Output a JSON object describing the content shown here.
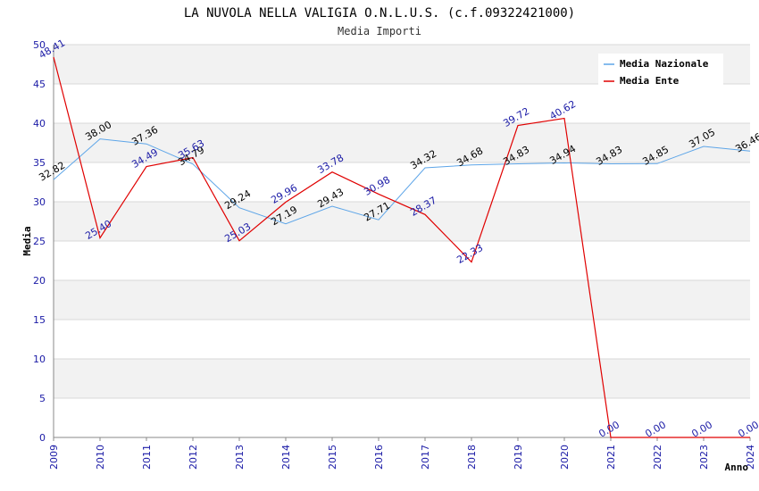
{
  "chart_data": {
    "type": "line",
    "title": "LA NUVOLA NELLA VALIGIA O.N.L.U.S. (c.f.09322421000)",
    "subtitle": "Media Importi",
    "xlabel": "Anno",
    "ylabel": "Media",
    "ylim": [
      0,
      50
    ],
    "yticks": [
      "0",
      "5",
      "10",
      "15",
      "20",
      "25",
      "30",
      "35",
      "40",
      "45",
      "50"
    ],
    "categories": [
      "2009",
      "2010",
      "2011",
      "2012",
      "2013",
      "2014",
      "2015",
      "2016",
      "2017",
      "2018",
      "2019",
      "2020",
      "2021",
      "2022",
      "2023",
      "2024"
    ],
    "legend_position": "top-right",
    "series": [
      {
        "name": "Media Nazionale",
        "color": "#5da5e8",
        "label_color": "#000000",
        "values": [
          32.82,
          38.0,
          37.36,
          34.79,
          29.24,
          27.19,
          29.43,
          27.71,
          34.32,
          34.68,
          34.83,
          34.94,
          34.83,
          34.85,
          37.05,
          36.46
        ],
        "labels": [
          "32.82",
          "38.00",
          "37.36",
          "34.79",
          "29.24",
          "27.19",
          "29.43",
          "27.71",
          "34.32",
          "34.68",
          "34.83",
          "34.94",
          "34.83",
          "34.85",
          "37.05",
          "36.46"
        ]
      },
      {
        "name": "Media Ente",
        "color": "#e00000",
        "label_color": "#1a1aa6",
        "values": [
          48.41,
          25.4,
          34.49,
          35.63,
          25.03,
          29.96,
          33.78,
          30.98,
          28.37,
          22.33,
          39.72,
          40.62,
          0.0,
          0.0,
          0.0,
          0.0
        ],
        "labels": [
          "48.41",
          "25.40",
          "34.49",
          "35.63",
          "25.03",
          "29.96",
          "33.78",
          "30.98",
          "28.37",
          "22.33",
          "39.72",
          "40.62",
          "0.00",
          "0.00",
          "0.00",
          "0.00"
        ]
      }
    ]
  }
}
